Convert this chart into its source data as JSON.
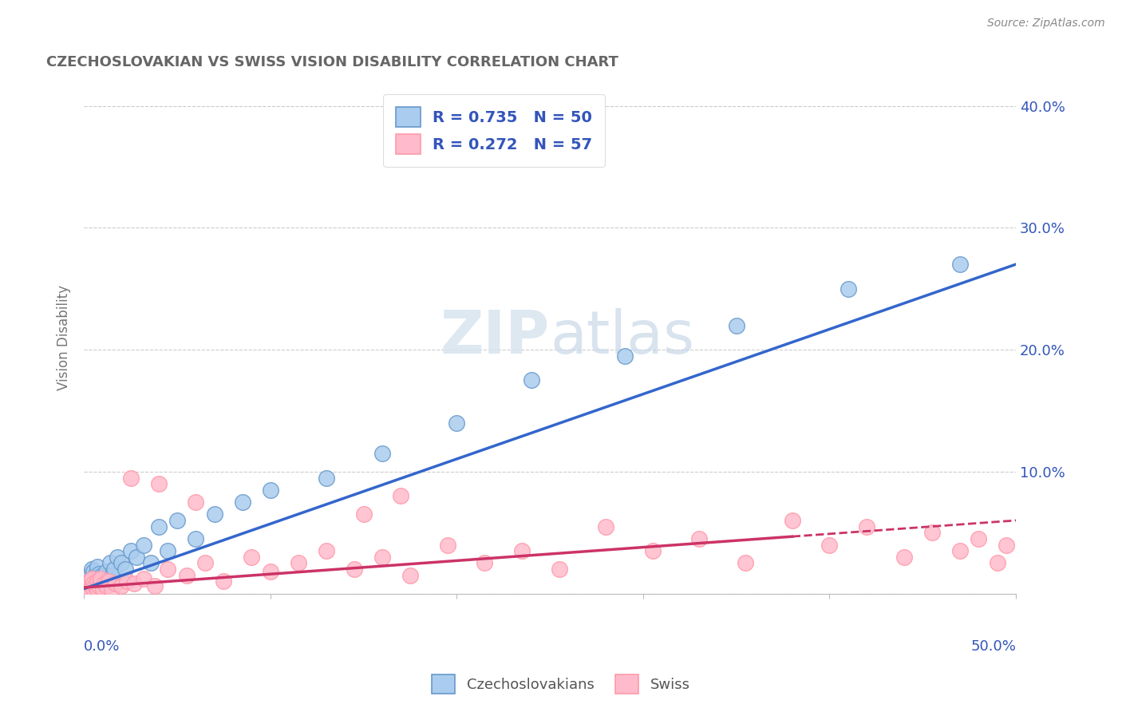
{
  "title": "CZECHOSLOVAKIAN VS SWISS VISION DISABILITY CORRELATION CHART",
  "source": "Source: ZipAtlas.com",
  "ylabel": "Vision Disability",
  "xlim": [
    0.0,
    0.5
  ],
  "ylim": [
    0.0,
    0.42
  ],
  "czech_R": 0.735,
  "czech_N": 50,
  "swiss_R": 0.272,
  "swiss_N": 57,
  "czech_color_edge": "#6699CC",
  "swiss_color_edge": "#FF99AA",
  "czech_color_fill": "#AACCEE",
  "swiss_color_fill": "#FFBBCC",
  "trend_blue": "#3366CC",
  "trend_pink": "#CC3366",
  "background_color": "#FFFFFF",
  "grid_color": "#CCCCCC",
  "legend_text_color": "#3355BB",
  "title_color": "#666666",
  "axis_label_color": "#3355BB",
  "swiss_trend_split": 0.38,
  "czech_x": [
    0.001,
    0.002,
    0.002,
    0.003,
    0.003,
    0.003,
    0.004,
    0.004,
    0.004,
    0.005,
    0.005,
    0.005,
    0.006,
    0.006,
    0.007,
    0.007,
    0.007,
    0.008,
    0.008,
    0.009,
    0.009,
    0.01,
    0.011,
    0.012,
    0.013,
    0.014,
    0.015,
    0.016,
    0.018,
    0.02,
    0.022,
    0.025,
    0.028,
    0.032,
    0.036,
    0.04,
    0.045,
    0.05,
    0.06,
    0.07,
    0.085,
    0.1,
    0.13,
    0.16,
    0.2,
    0.24,
    0.29,
    0.35,
    0.41,
    0.47
  ],
  "czech_y": [
    0.005,
    0.008,
    0.012,
    0.006,
    0.01,
    0.015,
    0.008,
    0.012,
    0.02,
    0.006,
    0.01,
    0.018,
    0.008,
    0.015,
    0.006,
    0.012,
    0.022,
    0.008,
    0.016,
    0.006,
    0.014,
    0.008,
    0.01,
    0.018,
    0.012,
    0.025,
    0.015,
    0.02,
    0.03,
    0.025,
    0.02,
    0.035,
    0.03,
    0.04,
    0.025,
    0.055,
    0.035,
    0.06,
    0.045,
    0.065,
    0.075,
    0.085,
    0.095,
    0.115,
    0.14,
    0.175,
    0.195,
    0.22,
    0.25,
    0.27
  ],
  "swiss_x": [
    0.001,
    0.002,
    0.003,
    0.003,
    0.004,
    0.004,
    0.005,
    0.005,
    0.006,
    0.007,
    0.007,
    0.008,
    0.009,
    0.01,
    0.011,
    0.012,
    0.013,
    0.015,
    0.017,
    0.02,
    0.023,
    0.027,
    0.032,
    0.038,
    0.045,
    0.055,
    0.065,
    0.075,
    0.09,
    0.1,
    0.115,
    0.13,
    0.145,
    0.16,
    0.175,
    0.195,
    0.215,
    0.235,
    0.255,
    0.28,
    0.305,
    0.33,
    0.355,
    0.38,
    0.4,
    0.42,
    0.44,
    0.455,
    0.47,
    0.48,
    0.49,
    0.495,
    0.15,
    0.17,
    0.06,
    0.04,
    0.025
  ],
  "swiss_y": [
    0.006,
    0.008,
    0.004,
    0.01,
    0.006,
    0.012,
    0.004,
    0.008,
    0.006,
    0.004,
    0.01,
    0.006,
    0.012,
    0.004,
    0.008,
    0.006,
    0.01,
    0.004,
    0.008,
    0.006,
    0.01,
    0.008,
    0.012,
    0.006,
    0.02,
    0.015,
    0.025,
    0.01,
    0.03,
    0.018,
    0.025,
    0.035,
    0.02,
    0.03,
    0.015,
    0.04,
    0.025,
    0.035,
    0.02,
    0.055,
    0.035,
    0.045,
    0.025,
    0.06,
    0.04,
    0.055,
    0.03,
    0.05,
    0.035,
    0.045,
    0.025,
    0.04,
    0.065,
    0.08,
    0.075,
    0.09,
    0.095
  ],
  "blue_line_x": [
    0.0,
    0.5
  ],
  "blue_line_y": [
    0.004,
    0.27
  ],
  "pink_line_x": [
    0.0,
    0.5
  ],
  "pink_line_y": [
    0.005,
    0.06
  ]
}
